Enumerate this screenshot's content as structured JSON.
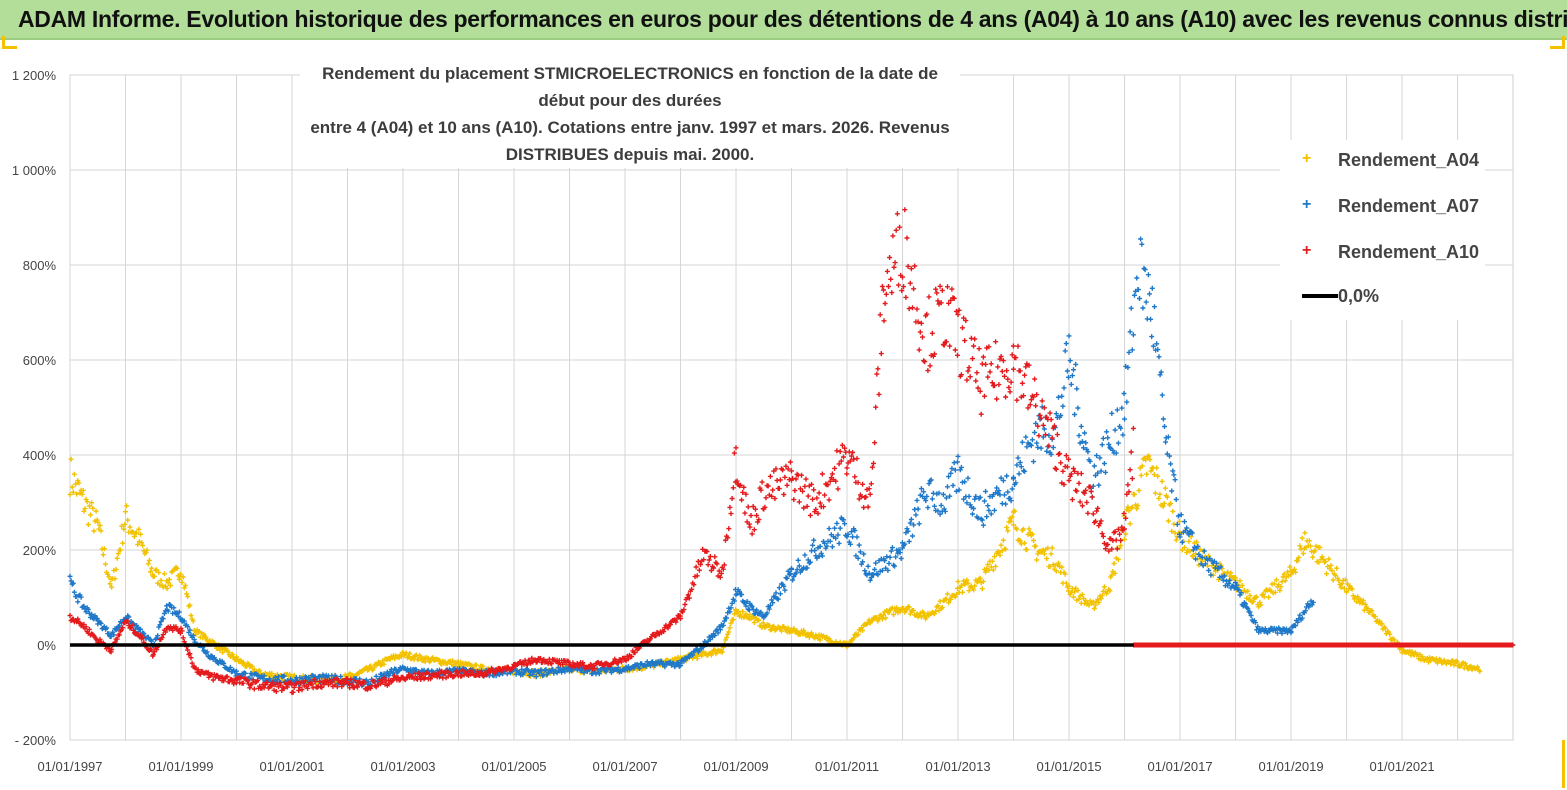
{
  "header": {
    "title": "ADAM Informe. Evolution historique des performances en euros pour des détentions de 4 ans (A04) à 10 ans (A10) avec les revenus connus distribués"
  },
  "chart_data": {
    "type": "scatter",
    "title_line1": "Rendement du placement STMICROELECTRONICS en fonction de la date de début pour des durées",
    "title_line2": "entre 4 (A04) et 10 ans (A10).  Cotations entre janv. 1997 et mars. 2026. Revenus DISTRIBUES depuis mai. 2000.",
    "ylim": [
      -200,
      1200
    ],
    "xlim": [
      "1997-01-01",
      "2022-12-31"
    ],
    "y_ticks": [
      "- 200%",
      "0%",
      "200%",
      "400%",
      "600%",
      "800%",
      "1 000%",
      "1 200%"
    ],
    "y_tick_values": [
      -200,
      0,
      200,
      400,
      600,
      800,
      1000,
      1200
    ],
    "x_ticks": [
      "01/01/1997",
      "01/01/1999",
      "01/01/2001",
      "01/01/2003",
      "01/01/2005",
      "01/01/2007",
      "01/01/2009",
      "01/01/2011",
      "01/01/2013",
      "01/01/2015",
      "01/01/2017",
      "01/01/2019",
      "01/01/2021"
    ],
    "x_tick_years": [
      1997,
      1999,
      2001,
      2003,
      2005,
      2007,
      2009,
      2011,
      2013,
      2015,
      2017,
      2019,
      2021
    ],
    "grid": "vertical-and-horizontal",
    "legend_placement": "right",
    "colors": {
      "Rendement_A04": "#f2c200",
      "Rendement_A07": "#1f78c8",
      "Rendement_A10": "#e41a1c",
      "0,0%": "#000000"
    },
    "series": [
      {
        "name": "Rendement_A04",
        "x": [
          "1997-01-01",
          "1997-04-01",
          "1997-07-01",
          "1997-10-01",
          "1998-01-01",
          "1998-04-01",
          "1998-07-01",
          "1998-10-01",
          "1999-01-01",
          "1999-04-01",
          "1999-07-01",
          "1999-10-01",
          "2000-01-01",
          "2000-06-01",
          "2001-01-01",
          "2001-06-01",
          "2002-01-01",
          "2002-06-01",
          "2002-10-01",
          "2003-01-01",
          "2003-06-01",
          "2004-01-01",
          "2004-06-01",
          "2005-01-01",
          "2005-06-01",
          "2006-01-01",
          "2006-06-01",
          "2007-01-01",
          "2007-06-01",
          "2008-01-01",
          "2008-06-01",
          "2008-10-01",
          "2009-01-01",
          "2009-04-01",
          "2009-07-01",
          "2010-01-01",
          "2010-06-01",
          "2011-01-01",
          "2011-06-01",
          "2012-01-01",
          "2012-06-01",
          "2012-10-01",
          "2013-01-01",
          "2013-06-01",
          "2014-01-01",
          "2014-06-01",
          "2014-10-01",
          "2015-01-01",
          "2015-06-01",
          "2015-10-01",
          "2016-01-01",
          "2016-06-01",
          "2016-10-01",
          "2017-01-01",
          "2017-06-01",
          "2018-01-01",
          "2018-06-01",
          "2019-01-01",
          "2019-04-01",
          "2019-07-01",
          "2020-01-01",
          "2020-06-01",
          "2021-01-01",
          "2021-06-01",
          "2022-01-01",
          "2022-06-01"
        ],
        "y": [
          360,
          300,
          250,
          120,
          270,
          220,
          150,
          130,
          160,
          30,
          10,
          -10,
          -30,
          -60,
          -70,
          -75,
          -70,
          -50,
          -30,
          -20,
          -30,
          -40,
          -50,
          -55,
          -60,
          -50,
          -55,
          -50,
          -45,
          -30,
          -20,
          -10,
          70,
          60,
          40,
          30,
          20,
          0,
          50,
          80,
          60,
          90,
          120,
          130,
          260,
          200,
          180,
          120,
          80,
          130,
          250,
          380,
          300,
          230,
          180,
          130,
          90,
          150,
          220,
          190,
          120,
          70,
          -10,
          -30,
          -40,
          -50
        ]
      },
      {
        "name": "Rendement_A07",
        "x": [
          "1997-01-01",
          "1997-04-01",
          "1997-07-01",
          "1997-10-01",
          "1998-01-01",
          "1998-04-01",
          "1998-07-01",
          "1998-10-01",
          "1999-01-01",
          "1999-04-01",
          "1999-07-01",
          "1999-10-01",
          "2000-01-01",
          "2000-06-01",
          "2001-01-01",
          "2001-06-01",
          "2002-01-01",
          "2002-06-01",
          "2002-10-01",
          "2003-01-01",
          "2003-06-01",
          "2004-01-01",
          "2004-06-01",
          "2005-01-01",
          "2005-06-01",
          "2006-01-01",
          "2006-06-01",
          "2007-01-01",
          "2007-06-01",
          "2008-01-01",
          "2008-06-01",
          "2008-10-01",
          "2009-01-01",
          "2009-04-01",
          "2009-07-01",
          "2010-01-01",
          "2010-06-01",
          "2011-01-01",
          "2011-06-01",
          "2012-01-01",
          "2012-06-01",
          "2012-10-01",
          "2013-01-01",
          "2013-06-01",
          "2014-01-01",
          "2014-06-01",
          "2014-10-01",
          "2015-01-01",
          "2015-06-01",
          "2015-10-01",
          "2016-01-01",
          "2016-04-01",
          "2016-07-01",
          "2016-10-01",
          "2017-01-01",
          "2017-06-01",
          "2018-01-01",
          "2018-06-01",
          "2019-01-01",
          "2019-06-01"
        ],
        "y": [
          130,
          80,
          50,
          20,
          60,
          30,
          0,
          80,
          60,
          10,
          -20,
          -40,
          -60,
          -70,
          -75,
          -70,
          -75,
          -80,
          -60,
          -50,
          -60,
          -55,
          -60,
          -55,
          -60,
          -50,
          -55,
          -50,
          -40,
          -40,
          0,
          40,
          110,
          80,
          60,
          150,
          200,
          250,
          150,
          200,
          320,
          300,
          360,
          280,
          350,
          450,
          450,
          600,
          350,
          430,
          500,
          800,
          700,
          420,
          250,
          180,
          120,
          30,
          30,
          100
        ]
      },
      {
        "name": "Rendement_A10",
        "x": [
          "1997-01-01",
          "1997-04-01",
          "1997-07-01",
          "1997-10-01",
          "1998-01-01",
          "1998-04-01",
          "1998-07-01",
          "1998-10-01",
          "1999-01-01",
          "1999-04-01",
          "1999-07-01",
          "1999-10-01",
          "2000-01-01",
          "2000-06-01",
          "2001-01-01",
          "2001-06-01",
          "2002-01-01",
          "2002-06-01",
          "2002-10-01",
          "2003-01-01",
          "2003-06-01",
          "2004-01-01",
          "2004-06-01",
          "2005-01-01",
          "2005-06-01",
          "2006-01-01",
          "2006-06-01",
          "2007-01-01",
          "2007-06-01",
          "2008-01-01",
          "2008-06-01",
          "2008-10-01",
          "2009-01-01",
          "2009-04-01",
          "2009-07-01",
          "2010-01-01",
          "2010-06-01",
          "2011-01-01",
          "2011-06-01",
          "2011-09-01",
          "2012-01-01",
          "2012-06-01",
          "2012-10-01",
          "2013-01-01",
          "2013-06-01",
          "2014-01-01",
          "2014-06-01",
          "2014-10-01",
          "2015-01-01",
          "2015-06-01",
          "2015-10-01",
          "2016-01-01",
          "2016-03-01"
        ],
        "y": [
          60,
          40,
          10,
          -10,
          50,
          20,
          -20,
          40,
          30,
          -50,
          -65,
          -70,
          -75,
          -85,
          -90,
          -80,
          -80,
          -85,
          -75,
          -70,
          -65,
          -60,
          -60,
          -45,
          -30,
          -40,
          -45,
          -30,
          10,
          60,
          190,
          150,
          400,
          250,
          320,
          350,
          300,
          400,
          300,
          750,
          850,
          650,
          700,
          650,
          550,
          600,
          500,
          420,
          350,
          300,
          200,
          250,
          420
        ]
      },
      {
        "name": "0,0%",
        "x": [
          "1997-01-01",
          "2022-12-31"
        ],
        "y": [
          0,
          0
        ]
      }
    ]
  }
}
